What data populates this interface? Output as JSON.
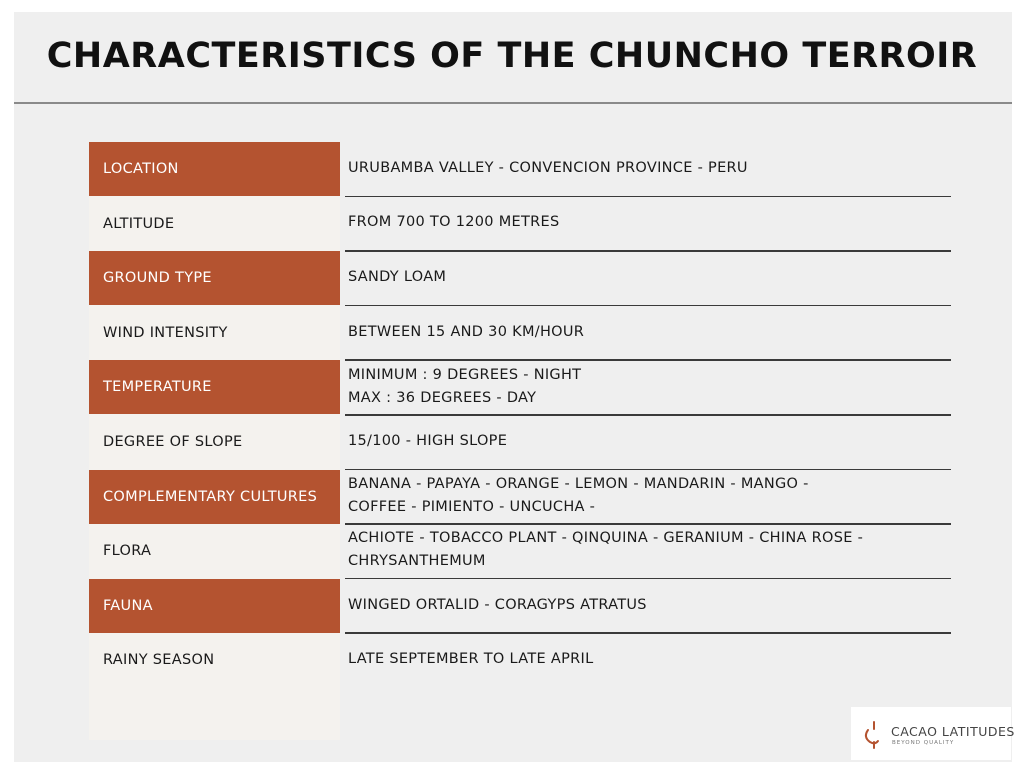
{
  "title": "CHARACTERISTICS OF THE CHUNCHO TERROIR",
  "theme": {
    "accent_color": "#b45330",
    "label_column_color": "#f4f2ee",
    "background_color": "#efefef"
  },
  "rows": [
    {
      "label": "LOCATION",
      "accent": true,
      "lines": [
        "URUBAMBA VALLEY - CONVENCION PROVINCE - PERU"
      ]
    },
    {
      "label": "ALTITUDE",
      "accent": false,
      "lines": [
        "FROM 700 TO 1200 METRES"
      ]
    },
    {
      "label": "GROUND TYPE",
      "accent": true,
      "lines": [
        "SANDY LOAM"
      ]
    },
    {
      "label": "WIND INTENSITY",
      "accent": false,
      "lines": [
        "BETWEEN 15 AND 30 KM/HOUR"
      ]
    },
    {
      "label": "TEMPERATURE",
      "accent": true,
      "lines": [
        "MINIMUM : 9 DEGREES - NIGHT",
        "MAX : 36 DEGREES - DAY"
      ]
    },
    {
      "label": "DEGREE OF SLOPE",
      "accent": false,
      "lines": [
        "15/100 - HIGH SLOPE"
      ]
    },
    {
      "label": "COMPLEMENTARY CULTURES",
      "accent": true,
      "lines": [
        "BANANA - PAPAYA - ORANGE - LEMON - MANDARIN - MANGO -",
        "COFFEE - PIMIENTO - UNCUCHA -"
      ]
    },
    {
      "label": "FLORA",
      "accent": false,
      "lines": [
        "ACHIOTE - TOBACCO PLANT - QINQUINA - GERANIUM - CHINA ROSE -",
        "CHRYSANTHEMUM"
      ]
    },
    {
      "label": "FAUNA",
      "accent": true,
      "lines": [
        "WINGED ORTALID - CORAGYPS ATRATUS"
      ]
    },
    {
      "label": "RAINY SEASON",
      "accent": false,
      "lines": [
        "LATE SEPTEMBER TO LATE APRIL"
      ]
    }
  ],
  "logo": {
    "name": "CACAO LATITUDES",
    "tagline": "BEYOND QUALITY",
    "icon": "cacao-pod-icon"
  }
}
